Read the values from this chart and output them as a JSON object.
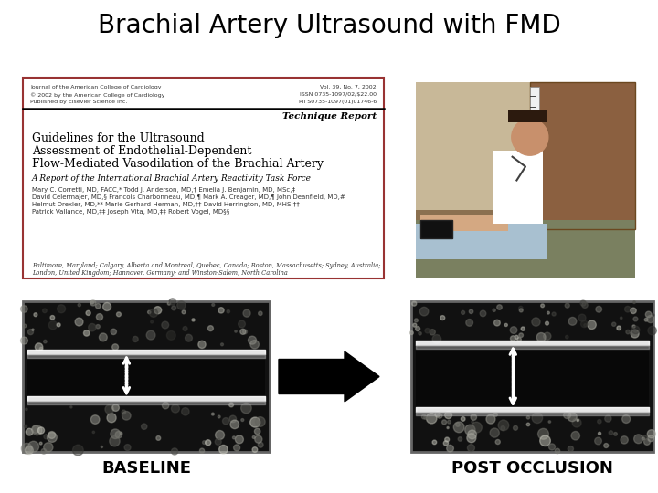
{
  "title": "Brachial Artery Ultrasound with FMD",
  "title_fontsize": 20,
  "title_color": "#000000",
  "background_color": "#ffffff",
  "baseline_label": "BASELINE",
  "post_label": "POST OCCLUSION",
  "label_fontsize": 13,
  "paper_box_color": "#993333",
  "paper_title_lines": [
    "Guidelines for the Ultrasound",
    "Assessment of Endothelial-Dependent",
    "Flow-Mediated Vasodilation of the Brachial Artery"
  ],
  "paper_subtitle": "A Report of the International Brachial Artery Reactivity Task Force",
  "paper_authors_lines": [
    "Mary C. Corretti, MD, FACC,* Todd J. Anderson, MD,† Emelia J. Benjamin, MD, MSc,‡",
    "David Celermajer, MD,§ Francois Charbonneau, MD,¶ Mark A. Creager, MD,¶ John Deanfield, MD,#",
    "Helmut Drexler, MD,** Marie Gerhard-Herman, MD,†† David Herrington, MD, MHS,††",
    "Patrick Vallance, MD,‡‡ Joseph Vita, MD,‡‡ Robert Vogel, MD§§"
  ],
  "paper_footer_lines": [
    "Baltimore, Maryland; Calgary, Alberta and Montreal, Quebec, Canada; Boston, Massachusetts; Sydney, Australia;",
    "London, United Kingdom; Hannover, Germany; and Winston-Salem, North Carolina"
  ],
  "paper_header_left_lines": [
    "Journal of the American College of Cardiology",
    "© 2002 by the American College of Cardiology",
    "Published by Elsevier Science Inc."
  ],
  "paper_header_right_lines": [
    "Vol. 39, No. 7, 2002",
    "ISSN 0735-1097/02/$22.00",
    "PII S0735-1097(01)01746-6"
  ],
  "technique_report_label": "Technique Report"
}
